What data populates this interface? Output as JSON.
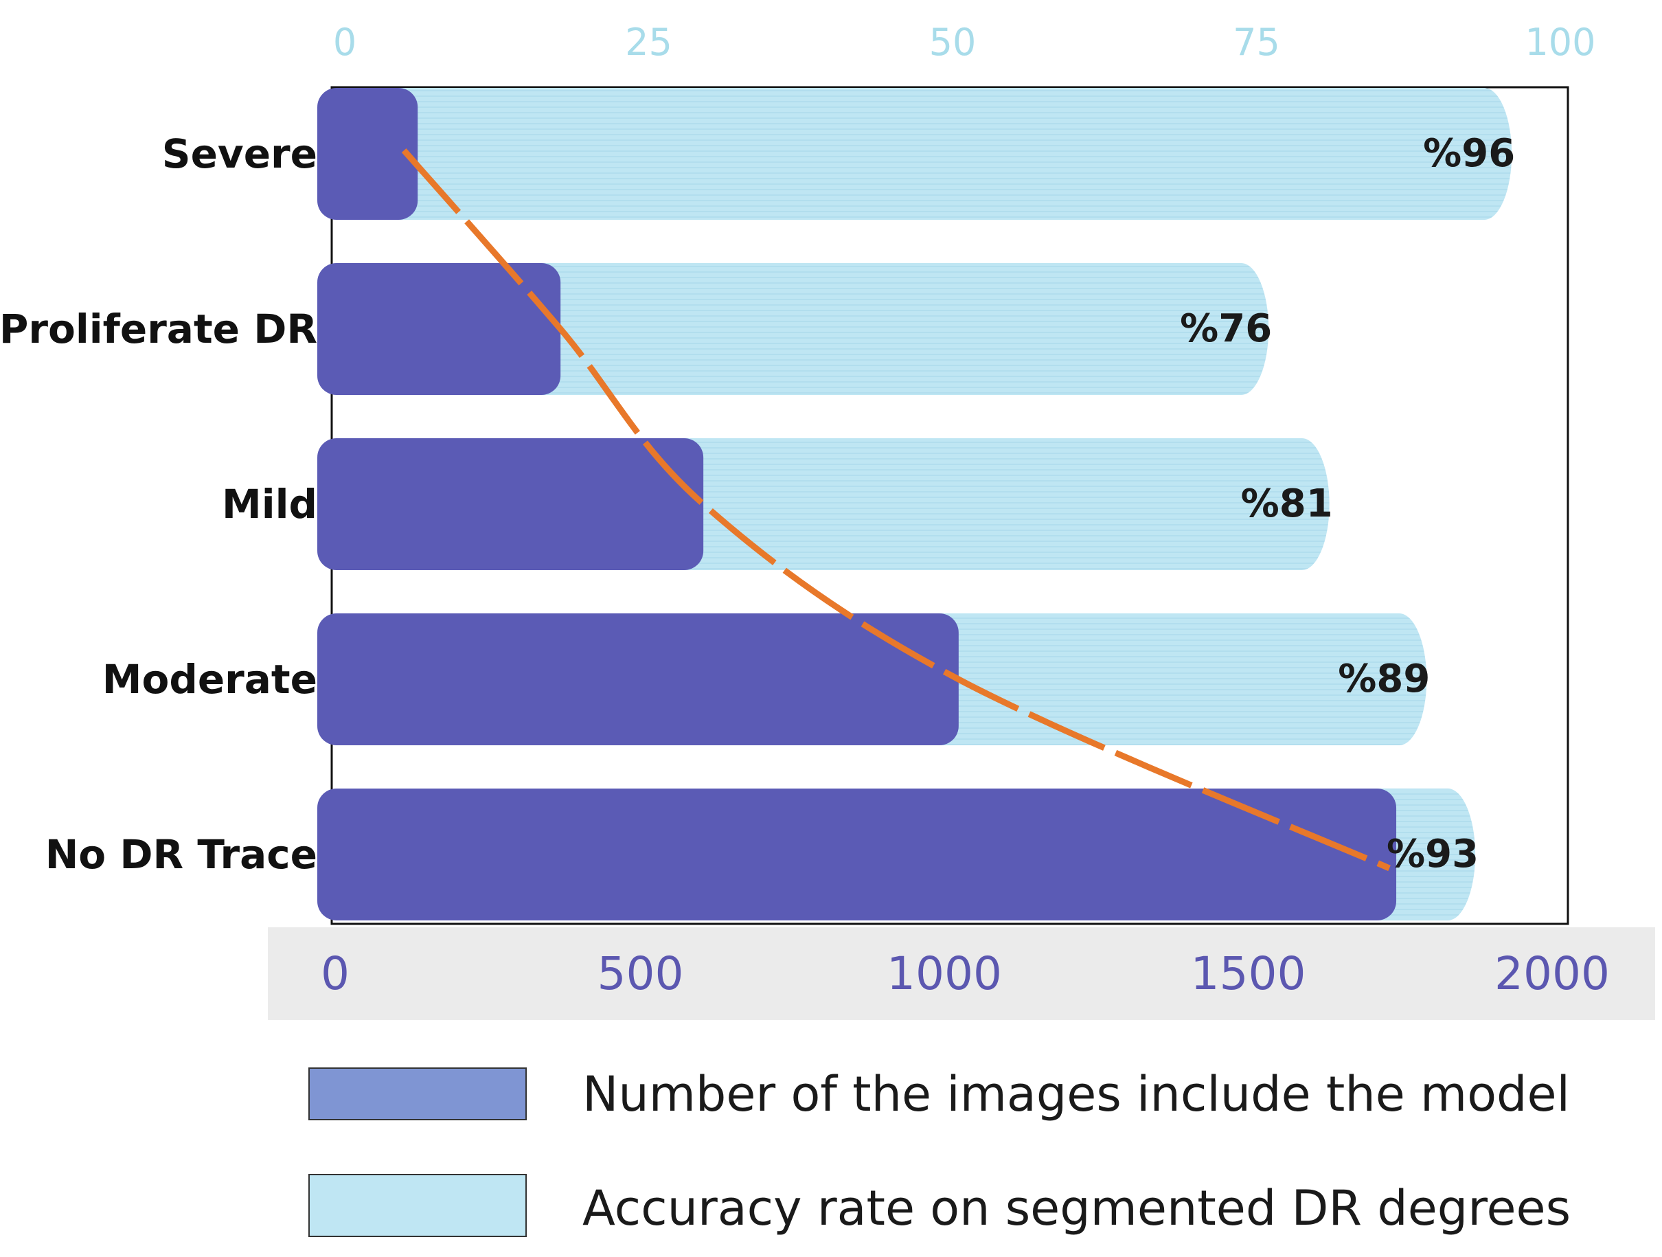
{
  "chart_data": {
    "type": "bar",
    "orientation": "horizontal",
    "categories": [
      "Severe",
      "Proliferate DR",
      "Mild",
      "Moderate",
      "No DR Trace"
    ],
    "series": [
      {
        "name": "Number of the images include the model",
        "axis": "bottom",
        "values": [
          120,
          355,
          590,
          1010,
          1730
        ],
        "color": "#5b5bb5"
      },
      {
        "name": "Accuracy rate on segmented DR degrees",
        "axis": "top",
        "values": [
          96,
          76,
          81,
          89,
          93
        ],
        "labels": [
          "%96",
          "%76",
          "%81",
          "%89",
          "%93"
        ],
        "color": "#bfe6f3"
      }
    ],
    "trend_line": {
      "style": "dashed",
      "color": "#e8782a",
      "fits_series": "Number of the images include the model"
    },
    "top_axis": {
      "range": [
        0,
        100
      ],
      "ticks": [
        "0",
        "25",
        "50",
        "75",
        "100"
      ],
      "tick_color": "#a8dcea"
    },
    "bottom_axis": {
      "range": [
        0,
        2000
      ],
      "ticks": [
        "0",
        "500",
        "1000",
        "1500",
        "2000"
      ],
      "tick_color": "#5b57b0"
    },
    "legend": {
      "position": "bottom",
      "items": [
        {
          "label": "Number of the images include the model",
          "color": "#7f95d3"
        },
        {
          "label": "Accuracy rate on segmented DR degrees",
          "color": "#bfe6f3"
        }
      ]
    },
    "grid": false
  }
}
